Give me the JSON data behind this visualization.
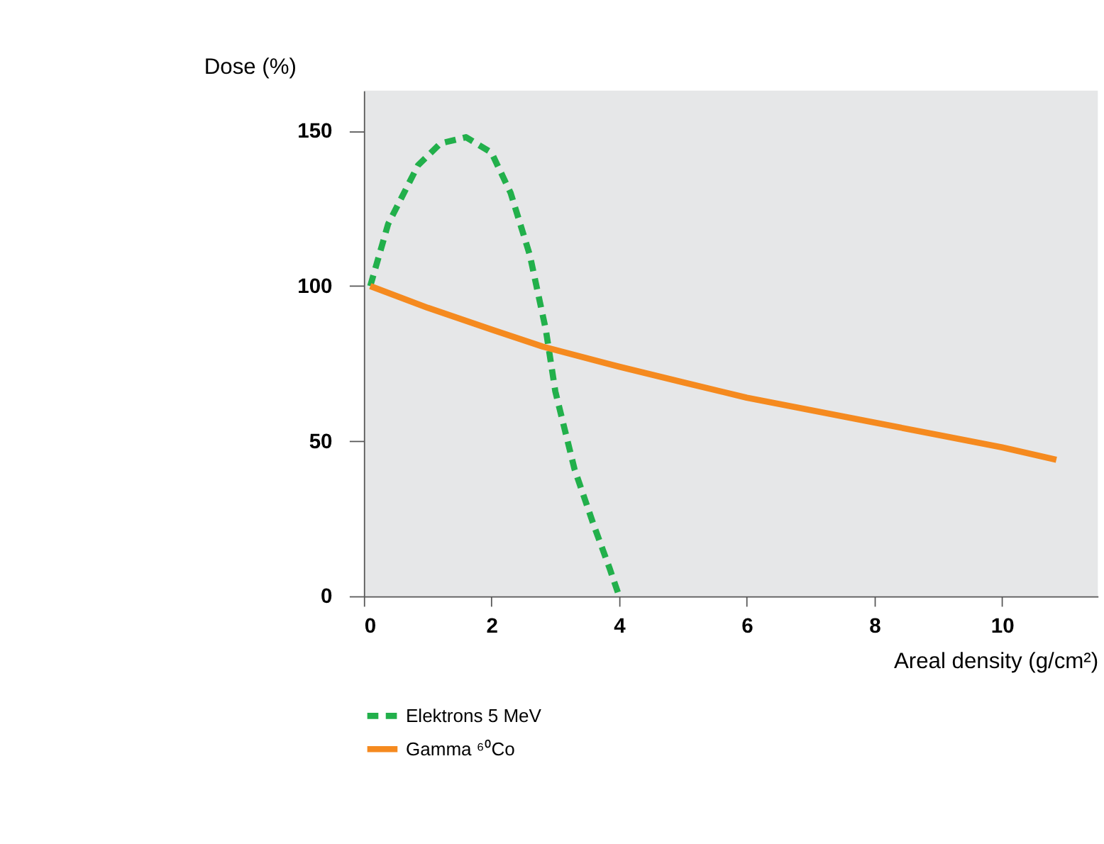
{
  "chart_data": {
    "type": "line",
    "xlabel": "Areal density (g/cm²)",
    "ylabel": "Dose (%)",
    "xlim": [
      0,
      11.5
    ],
    "ylim": [
      0,
      163
    ],
    "xticks": [
      0,
      2,
      4,
      6,
      8,
      10
    ],
    "yticks": [
      0,
      50,
      100,
      150
    ],
    "grid": false,
    "legend": "bottom",
    "marker": "none",
    "series": [
      {
        "name": "Elektrons 5 MeV",
        "color": "#22b04b",
        "line_style": "dashed",
        "x": [
          0.1,
          0.38,
          0.85,
          1.2,
          1.6,
          2.0,
          2.3,
          2.6,
          2.85,
          3.0,
          3.3,
          3.6,
          3.85,
          4.0
        ],
        "values": [
          100,
          120,
          139,
          146,
          148,
          143,
          130,
          110,
          86,
          66,
          41,
          23,
          9,
          0
        ]
      },
      {
        "name": "Gamma ⁶⁰Co",
        "color": "#f58a1f",
        "line_style": "solid",
        "x": [
          0.1,
          1,
          2,
          2.8,
          4,
          5,
          6,
          7,
          8,
          9,
          10,
          10.85
        ],
        "values": [
          100,
          93,
          86,
          80.5,
          74,
          69,
          64,
          60,
          56,
          52,
          48,
          44
        ]
      }
    ]
  }
}
